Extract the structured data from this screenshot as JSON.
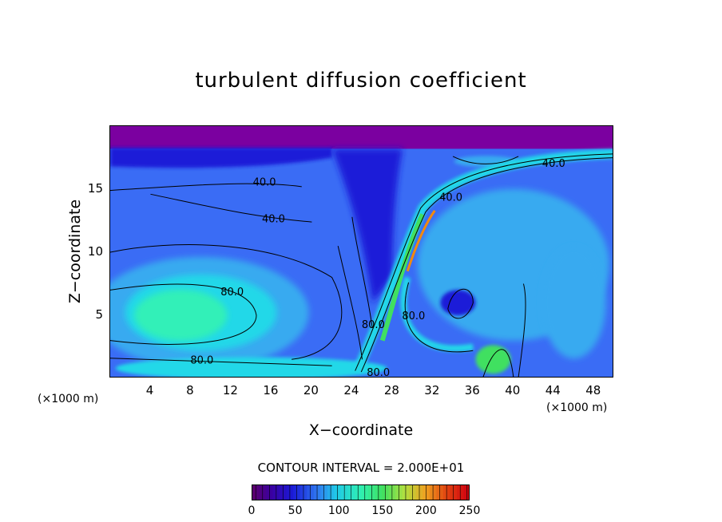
{
  "chart_data": {
    "type": "heatmap",
    "title": "turbulent diffusion coefficient",
    "xlabel": "X−coordinate",
    "ylabel": "Z−coordinate",
    "xlim": [
      0,
      50
    ],
    "ylim": [
      0,
      20
    ],
    "x_unit_label": "(×1000 m)",
    "x_ticks": [
      4,
      8,
      12,
      16,
      20,
      24,
      28,
      32,
      36,
      40,
      44,
      48
    ],
    "y_ticks": [
      5,
      10,
      15
    ],
    "contour_interval_text": "CONTOUR INTERVAL = 2.000E+01",
    "contour_interval": 20,
    "colorbar": {
      "min": 0,
      "max": 250,
      "ticks": [
        0,
        50,
        100,
        150,
        200,
        250
      ]
    },
    "contour_labels": [
      {
        "text": "40.0",
        "x": 15.3,
        "z": 15.5
      },
      {
        "text": "40.0",
        "x": 16.2,
        "z": 12.6
      },
      {
        "text": "80.0",
        "x": 12.1,
        "z": 6.8
      },
      {
        "text": "80.0",
        "x": 9.1,
        "z": 1.4
      },
      {
        "text": "80.0",
        "x": 26.6,
        "z": 0.4
      },
      {
        "text": "40.0",
        "x": 33.8,
        "z": 14.3
      },
      {
        "text": "40.0",
        "x": 44.0,
        "z": 17.0
      },
      {
        "text": "80.0",
        "x": 26.1,
        "z": 4.2
      },
      {
        "text": "80.0",
        "x": 30.1,
        "z": 4.9
      }
    ]
  },
  "colors": {
    "purple": "#7b00a0",
    "navy": "#1a1ad8",
    "blue": "#3a6cf5",
    "sky": "#38aaf0",
    "cyan": "#20d8e8",
    "aqua": "#30f0b8",
    "green": "#40e060",
    "orange": "#f08a10"
  }
}
